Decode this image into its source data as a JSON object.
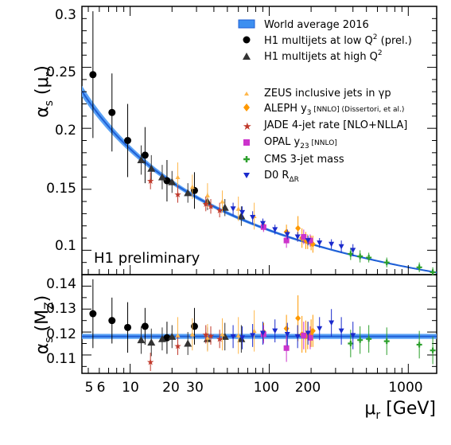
{
  "chart_data": [
    {
      "type": "scatter",
      "panel": "top",
      "ylabel_main": "α",
      "ylabel_sub": "s",
      "ylabel_arg": "r",
      "ylim": [
        0.08,
        0.3
      ],
      "yticks": [
        "0.1",
        "0.15",
        "0.2",
        "0.25",
        "0.3"
      ],
      "xscale": "log",
      "xlim": [
        4.5,
        1600
      ],
      "annotation": "H1 preliminary",
      "legend": {
        "world_average": "World average 2016",
        "h1_low_label": "H1 multijets at low Q",
        "h1_low_suffix": "(prel.)",
        "h1_high_label": "H1 multijets at high Q",
        "zeus": "ZEUS inclusive jets in γp",
        "aleph_prefix": "ALEPH y",
        "aleph_sub": "3",
        "aleph_suffix": "[NNLO] (Dissertori, et al.)",
        "jade": "JADE 4-jet rate [NLO+NLLA]",
        "opal_prefix": "OPAL y",
        "opal_sub": "23",
        "opal_suffix": "[NNLO]",
        "cms": "CMS 3-jet mass",
        "d0_prefix": "D0 R",
        "d0_sub": "ΔR",
        "colors": {
          "world_average": "#1f5fd6",
          "h1_low": "#000000",
          "h1_high": "#333333",
          "zeus": "#ffb84d",
          "aleph": "#ff9900",
          "jade": "#c0392b",
          "opal": "#cc33cc",
          "cms": "#2ca02c",
          "d0": "#1a2acc"
        }
      },
      "world_average_curve": {
        "mz": 91.19,
        "alphas_mz": 0.1181,
        "alphas_mz_uncertainty": 0.0011
      },
      "series": [
        {
          "name": "H1 multijets at low Q² (prel.)",
          "marker": "circle",
          "points": [
            {
              "x": 5.4,
              "y": 0.244,
              "err": 0.052
            },
            {
              "x": 7.4,
              "y": 0.213,
              "err": 0.032
            },
            {
              "x": 9.6,
              "y": 0.19,
              "err": 0.03
            },
            {
              "x": 12.8,
              "y": 0.178,
              "err": 0.023
            },
            {
              "x": 18.4,
              "y": 0.157,
              "err": 0.017
            },
            {
              "x": 29.0,
              "y": 0.149,
              "err": 0.015
            }
          ]
        },
        {
          "name": "H1 multijets at high Q²",
          "marker": "triangle-up",
          "points": [
            {
              "x": 12.0,
              "y": 0.174,
              "err": 0.012
            },
            {
              "x": 14.2,
              "y": 0.167,
              "err": 0.011
            },
            {
              "x": 17.0,
              "y": 0.16,
              "err": 0.01
            },
            {
              "x": 20.0,
              "y": 0.156,
              "err": 0.009
            },
            {
              "x": 26.0,
              "y": 0.147,
              "err": 0.008
            },
            {
              "x": 36.0,
              "y": 0.14,
              "err": 0.007
            },
            {
              "x": 48.0,
              "y": 0.135,
              "err": 0.007
            },
            {
              "x": 63.0,
              "y": 0.128,
              "err": 0.008
            }
          ]
        },
        {
          "name": "ZEUS inclusive jets in γp",
          "marker": "triangle-up-small",
          "points": [
            {
              "x": 22,
              "y": 0.16,
              "err": 0.012
            },
            {
              "x": 28,
              "y": 0.152,
              "err": 0.01
            },
            {
              "x": 36,
              "y": 0.145,
              "err": 0.01
            },
            {
              "x": 46,
              "y": 0.14,
              "err": 0.009
            },
            {
              "x": 60,
              "y": 0.134,
              "err": 0.01
            },
            {
              "x": 78,
              "y": 0.128,
              "err": 0.011
            }
          ]
        },
        {
          "name": "ALEPH y3 [NNLO] (Dissertori, et al.)",
          "marker": "diamond",
          "points": [
            {
              "x": 91.2,
              "y": 0.12,
              "err": 0.004
            },
            {
              "x": 133,
              "y": 0.115,
              "err": 0.006
            },
            {
              "x": 161,
              "y": 0.118,
              "err": 0.01
            },
            {
              "x": 172,
              "y": 0.11,
              "err": 0.008
            },
            {
              "x": 183,
              "y": 0.108,
              "err": 0.007
            },
            {
              "x": 189,
              "y": 0.107,
              "err": 0.006
            },
            {
              "x": 200,
              "y": 0.106,
              "err": 0.006
            },
            {
              "x": 206,
              "y": 0.105,
              "err": 0.007
            }
          ]
        },
        {
          "name": "JADE 4-jet rate [NLO+NLLA]",
          "marker": "star",
          "points": [
            {
              "x": 14,
              "y": 0.157,
              "err": 0.007
            },
            {
              "x": 22,
              "y": 0.146,
              "err": 0.007
            },
            {
              "x": 35,
              "y": 0.138,
              "err": 0.006
            },
            {
              "x": 38,
              "y": 0.136,
              "err": 0.006
            },
            {
              "x": 44,
              "y": 0.133,
              "err": 0.006
            }
          ]
        },
        {
          "name": "OPAL y23 [NNLO]",
          "marker": "square",
          "points": [
            {
              "x": 91,
              "y": 0.119,
              "err": 0.004
            },
            {
              "x": 133,
              "y": 0.108,
              "err": 0.006
            },
            {
              "x": 177,
              "y": 0.111,
              "err": 0.006
            },
            {
              "x": 197,
              "y": 0.108,
              "err": 0.005
            }
          ]
        },
        {
          "name": "CMS 3-jet mass",
          "marker": "cross",
          "points": [
            {
              "x": 385,
              "y": 0.097,
              "err": 0.005
            },
            {
              "x": 450,
              "y": 0.095,
              "err": 0.005
            },
            {
              "x": 520,
              "y": 0.094,
              "err": 0.004
            },
            {
              "x": 700,
              "y": 0.09,
              "err": 0.004
            },
            {
              "x": 1200,
              "y": 0.086,
              "err": 0.004
            },
            {
              "x": 1500,
              "y": 0.082,
              "err": 0.004
            }
          ]
        },
        {
          "name": "D0 RΔR",
          "marker": "triangle-down",
          "points": [
            {
              "x": 55,
              "y": 0.134,
              "err": 0.005
            },
            {
              "x": 64,
              "y": 0.131,
              "err": 0.005
            },
            {
              "x": 76,
              "y": 0.127,
              "err": 0.005
            },
            {
              "x": 90,
              "y": 0.122,
              "err": 0.004
            },
            {
              "x": 110,
              "y": 0.117,
              "err": 0.004
            },
            {
              "x": 135,
              "y": 0.113,
              "err": 0.004
            },
            {
              "x": 160,
              "y": 0.111,
              "err": 0.004
            },
            {
              "x": 190,
              "y": 0.108,
              "err": 0.004
            },
            {
              "x": 230,
              "y": 0.106,
              "err": 0.004
            },
            {
              "x": 280,
              "y": 0.105,
              "err": 0.004
            },
            {
              "x": 330,
              "y": 0.103,
              "err": 0.005
            },
            {
              "x": 400,
              "y": 0.1,
              "err": 0.005
            }
          ]
        }
      ]
    },
    {
      "type": "scatter",
      "panel": "bottom",
      "ylabel_main": "α",
      "ylabel_sub": "s",
      "ylabel_arg": "M",
      "ylabel_arg_sub": "Z",
      "ylim": [
        0.102,
        0.145
      ],
      "yticks": [
        "0.11",
        "0.12",
        "0.13",
        "0.14"
      ],
      "xscale": "log",
      "xlim": [
        4.5,
        1600
      ],
      "xticks": [
        "5",
        "6",
        "10",
        "20",
        "30",
        "100",
        "200",
        "1000"
      ],
      "xlabel_main": "μ",
      "xlabel_sub": "r",
      "xlabel_unit": "[GeV]",
      "band_center": 0.1181,
      "band_halfwidth": 0.0011,
      "series": [
        {
          "name": "H1 multijets at low Q² (prel.)",
          "marker": "circle",
          "points": [
            {
              "x": 5.4,
              "y": 0.128,
              "err": 0.015
            },
            {
              "x": 7.4,
              "y": 0.125,
              "err": 0.01
            },
            {
              "x": 9.6,
              "y": 0.122,
              "err": 0.011
            },
            {
              "x": 12.8,
              "y": 0.1225,
              "err": 0.008
            },
            {
              "x": 18.4,
              "y": 0.1175,
              "err": 0.007
            },
            {
              "x": 29.0,
              "y": 0.1225,
              "err": 0.008
            }
          ]
        },
        {
          "name": "H1 multijets at high Q²",
          "marker": "triangle-up",
          "points": [
            {
              "x": 12.0,
              "y": 0.1165,
              "err": 0.006
            },
            {
              "x": 14.2,
              "y": 0.1155,
              "err": 0.006
            },
            {
              "x": 17.0,
              "y": 0.117,
              "err": 0.005
            },
            {
              "x": 20.0,
              "y": 0.118,
              "err": 0.005
            },
            {
              "x": 26.0,
              "y": 0.115,
              "err": 0.005
            },
            {
              "x": 36.0,
              "y": 0.117,
              "err": 0.005
            },
            {
              "x": 48.0,
              "y": 0.118,
              "err": 0.006
            },
            {
              "x": 63.0,
              "y": 0.117,
              "err": 0.006
            }
          ]
        },
        {
          "name": "ZEUS inclusive jets in γp",
          "marker": "triangle-up-small",
          "points": [
            {
              "x": 22,
              "y": 0.1185,
              "err": 0.008
            },
            {
              "x": 28,
              "y": 0.119,
              "err": 0.007
            },
            {
              "x": 36,
              "y": 0.1175,
              "err": 0.006
            },
            {
              "x": 46,
              "y": 0.119,
              "err": 0.007
            },
            {
              "x": 60,
              "y": 0.1185,
              "err": 0.008
            },
            {
              "x": 78,
              "y": 0.1205,
              "err": 0.009
            }
          ]
        },
        {
          "name": "ALEPH y3 [NNLO] (Dissertori, et al.)",
          "marker": "diamond",
          "points": [
            {
              "x": 91.2,
              "y": 0.12,
              "err": 0.004
            },
            {
              "x": 133,
              "y": 0.1215,
              "err": 0.006
            },
            {
              "x": 161,
              "y": 0.126,
              "err": 0.01
            },
            {
              "x": 172,
              "y": 0.119,
              "err": 0.008
            },
            {
              "x": 183,
              "y": 0.118,
              "err": 0.007
            },
            {
              "x": 189,
              "y": 0.1185,
              "err": 0.006
            },
            {
              "x": 200,
              "y": 0.1195,
              "err": 0.006
            },
            {
              "x": 206,
              "y": 0.1205,
              "err": 0.007
            }
          ]
        },
        {
          "name": "JADE 4-jet rate [NLO+NLLA]",
          "marker": "star",
          "points": [
            {
              "x": 14,
              "y": 0.107,
              "err": 0.004
            },
            {
              "x": 22,
              "y": 0.114,
              "err": 0.004
            },
            {
              "x": 35,
              "y": 0.119,
              "err": 0.004
            },
            {
              "x": 38,
              "y": 0.1185,
              "err": 0.004
            },
            {
              "x": 44,
              "y": 0.117,
              "err": 0.004
            }
          ]
        },
        {
          "name": "OPAL y23 [NNLO]",
          "marker": "square",
          "points": [
            {
              "x": 91,
              "y": 0.119,
              "err": 0.004
            },
            {
              "x": 133,
              "y": 0.113,
              "err": 0.006
            },
            {
              "x": 177,
              "y": 0.1185,
              "err": 0.006
            },
            {
              "x": 197,
              "y": 0.1175,
              "err": 0.005
            }
          ]
        },
        {
          "name": "CMS 3-jet mass",
          "marker": "cross",
          "points": [
            {
              "x": 385,
              "y": 0.115,
              "err": 0.006
            },
            {
              "x": 450,
              "y": 0.1165,
              "err": 0.006
            },
            {
              "x": 520,
              "y": 0.117,
              "err": 0.006
            },
            {
              "x": 700,
              "y": 0.116,
              "err": 0.006
            },
            {
              "x": 1200,
              "y": 0.1145,
              "err": 0.006
            },
            {
              "x": 1500,
              "y": 0.112,
              "err": 0.006
            }
          ]
        },
        {
          "name": "D0 RΔR",
          "marker": "triangle-down",
          "points": [
            {
              "x": 55,
              "y": 0.118,
              "err": 0.005
            },
            {
              "x": 64,
              "y": 0.1175,
              "err": 0.005
            },
            {
              "x": 76,
              "y": 0.1185,
              "err": 0.005
            },
            {
              "x": 90,
              "y": 0.1195,
              "err": 0.005
            },
            {
              "x": 110,
              "y": 0.1205,
              "err": 0.005
            },
            {
              "x": 135,
              "y": 0.119,
              "err": 0.005
            },
            {
              "x": 160,
              "y": 0.118,
              "err": 0.005
            },
            {
              "x": 190,
              "y": 0.1195,
              "err": 0.005
            },
            {
              "x": 230,
              "y": 0.1215,
              "err": 0.005
            },
            {
              "x": 280,
              "y": 0.124,
              "err": 0.006
            },
            {
              "x": 330,
              "y": 0.1205,
              "err": 0.006
            },
            {
              "x": 400,
              "y": 0.1185,
              "err": 0.006
            }
          ]
        }
      ]
    }
  ]
}
